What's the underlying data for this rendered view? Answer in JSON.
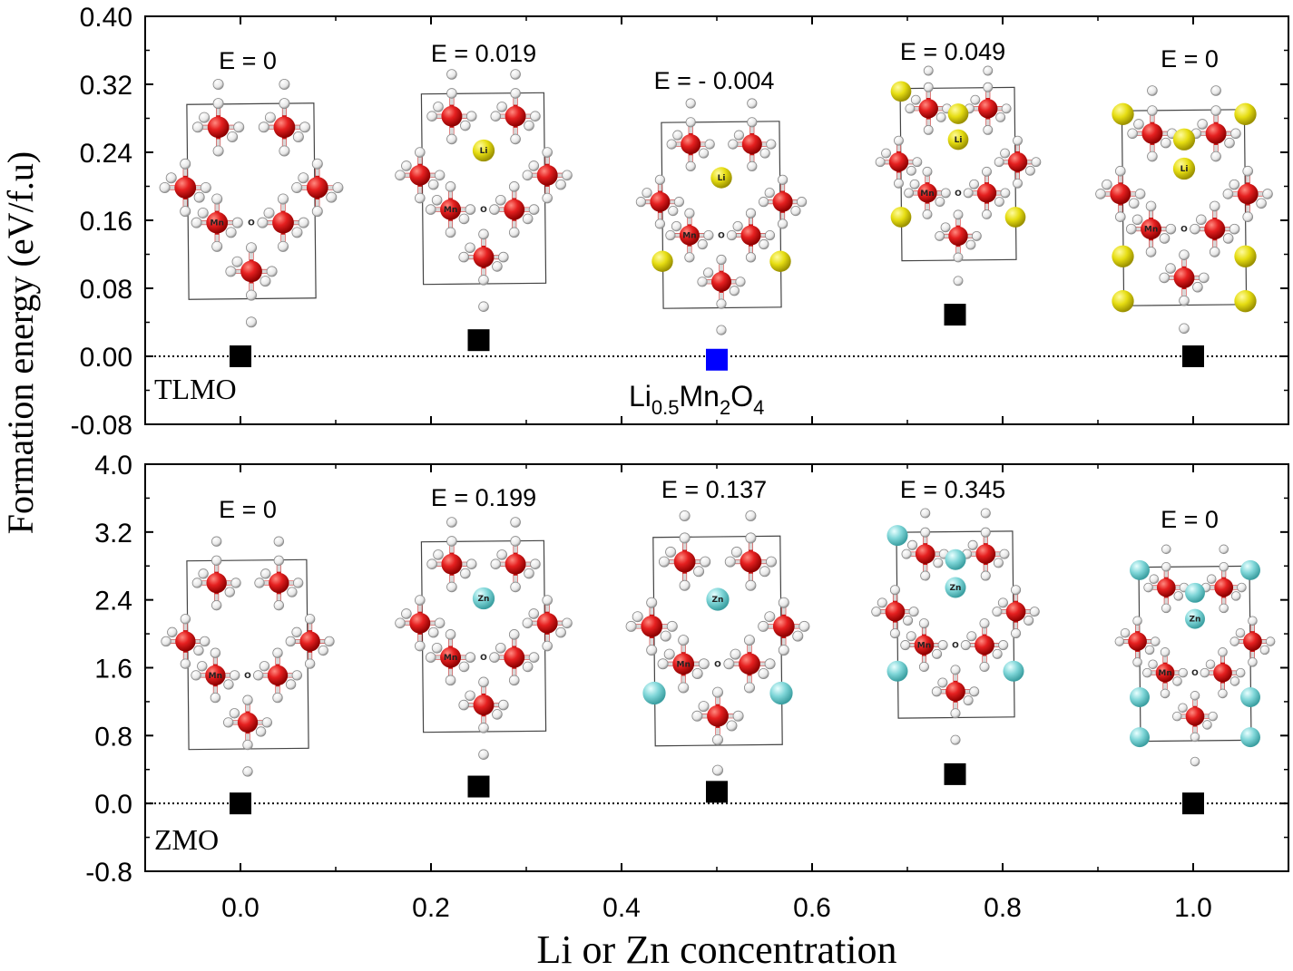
{
  "chart_data": [
    {
      "type": "scatter",
      "panel": "top",
      "x": [
        0.0,
        0.25,
        0.5,
        0.75,
        1.0
      ],
      "y": [
        0.0,
        0.019,
        -0.004,
        0.049,
        0.0
      ],
      "ylim": [
        -0.08,
        0.4
      ],
      "yticks": [
        "-0.08",
        "0.00",
        "0.08",
        "0.16",
        "0.24",
        "0.32",
        "0.40"
      ],
      "annotations": [
        "E = 0",
        "E = 0.019",
        "E = - 0.004",
        "E = 0.049",
        "E = 0"
      ],
      "highlight_index": 2,
      "highlight_color": "#0000ff",
      "marker_color": "#000000",
      "reference_label": "TLMO",
      "formula_main_1": "Li",
      "formula_sub_1": "0.5",
      "formula_main_2": "Mn",
      "formula_sub_2": "2",
      "formula_main_3": "O",
      "formula_sub_3": "4",
      "dopant": "Li",
      "dopant_color": "#e6dd12"
    },
    {
      "type": "scatter",
      "panel": "bottom",
      "x": [
        0.0,
        0.25,
        0.5,
        0.75,
        1.0
      ],
      "y": [
        0.0,
        0.199,
        0.137,
        0.345,
        0.0
      ],
      "ylim": [
        -0.8,
        4.0
      ],
      "yticks": [
        "-0.8",
        "0.0",
        "0.8",
        "1.6",
        "2.4",
        "3.2",
        "4.0"
      ],
      "annotations": [
        "E = 0",
        "E = 0.199",
        "E = 0.137",
        "E = 0.345",
        "E = 0"
      ],
      "marker_color": "#000000",
      "reference_label": "ZMO",
      "dopant": "Zn",
      "dopant_color": "#7fd6d8"
    }
  ],
  "axes": {
    "xlabel": "Li or Zn concentration",
    "ylabel": "Formation energy (eV/f.u)",
    "xlim": [
      -0.1,
      1.1
    ],
    "xticks": [
      "0.0",
      "0.2",
      "0.4",
      "0.6",
      "0.8",
      "1.0"
    ],
    "reference_line": 0
  },
  "structure_labels": {
    "mn": "Mn",
    "o": "O"
  },
  "colors": {
    "mn_atom": "#dd1a1a",
    "o_atom": "#f2f2f2",
    "bond": "#cc1111",
    "cell": "#444444"
  }
}
